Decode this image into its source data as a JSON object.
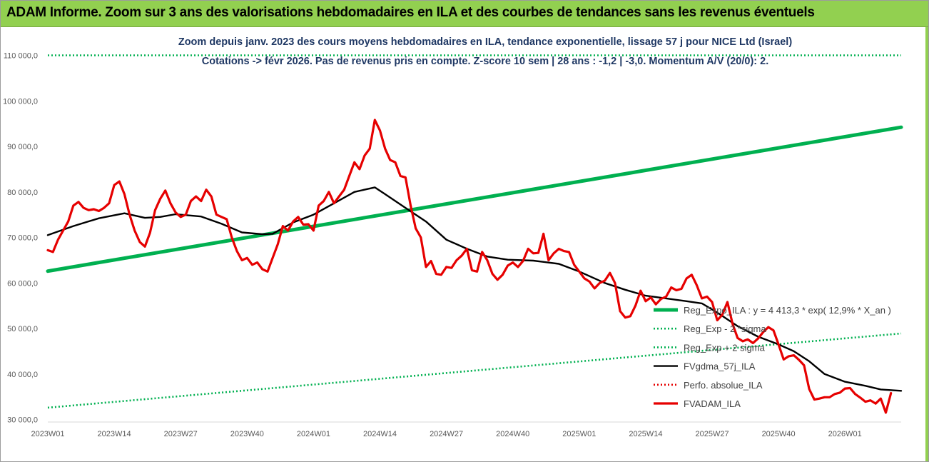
{
  "banner": {
    "title": "ADAM Informe. Zoom sur 3 ans des valorisations hebdomadaires en ILA et des courbes de tendances sans les revenus éventuels"
  },
  "colors": {
    "banner_bg": "#92d050",
    "subtitle": "#1f3864",
    "trend": "#00b050",
    "bands": "#00b050",
    "average": "#000000",
    "price": "#e60000",
    "perf": "#e60000"
  },
  "chart_data": {
    "type": "line",
    "title": "Zoom depuis janv. 2023 des cours moyens hebdomadaires en ILA, tendance exponentielle, lissage 57 j pour NICE Ltd (Israel)",
    "subtitle": "Cotations -> févr 2026.  Pas de revenus pris en compte. Z-score 10 sem | 28 ans : -1,2 | -3,0. Momentum A/V (20/0): 2.",
    "xlabel": "",
    "ylabel": "",
    "ylim": [
      30000,
      110000
    ],
    "y_ticks": [
      "30 000,0",
      "40 000,0",
      "50 000,0",
      "60 000,0",
      "70 000,0",
      "80 000,0",
      "90 000,0",
      "100 000,0",
      "110 000,0"
    ],
    "y_tick_values": [
      30000,
      40000,
      50000,
      60000,
      70000,
      80000,
      90000,
      100000,
      110000
    ],
    "x_ticks": [
      "2023W01",
      "2023W14",
      "2023W27",
      "2023W40",
      "2024W01",
      "2024W14",
      "2024W27",
      "2024W40",
      "2025W01",
      "2025W14",
      "2025W27",
      "2025W40",
      "2026W01"
    ],
    "x_tick_index": [
      0,
      13,
      26,
      39,
      52,
      65,
      78,
      91,
      104,
      117,
      130,
      143,
      156
    ],
    "n_weeks": 168,
    "grid": false,
    "legend_position": "right",
    "series": [
      {
        "name": "Reg_Expo_ILA : y = 4 413,3 * exp( 12,9% * X_an )",
        "style": "solid-thick",
        "color": "#00b050",
        "points": [
          [
            0,
            62600
          ],
          [
            167,
            94200
          ]
        ]
      },
      {
        "name": "Reg_Exp - 2 *sigma",
        "style": "dotted",
        "color": "#00b050",
        "points": [
          [
            0,
            32600
          ],
          [
            167,
            48900
          ]
        ]
      },
      {
        "name": "Reg_Exp + 2 sigma",
        "style": "dotted",
        "color": "#00b050",
        "points": [
          [
            0,
            110000
          ],
          [
            167,
            110000
          ]
        ]
      },
      {
        "name": "FVgdma_57j_ILA",
        "style": "solid",
        "color": "#000000",
        "points": [
          [
            0,
            70500
          ],
          [
            5,
            72500
          ],
          [
            10,
            74200
          ],
          [
            15,
            75300
          ],
          [
            19,
            74300
          ],
          [
            22,
            74500
          ],
          [
            25,
            75100
          ],
          [
            30,
            74600
          ],
          [
            34,
            73000
          ],
          [
            38,
            71100
          ],
          [
            42,
            70700
          ],
          [
            44,
            70800
          ],
          [
            48,
            73300
          ],
          [
            52,
            75000
          ],
          [
            56,
            77500
          ],
          [
            60,
            80000
          ],
          [
            64,
            81000
          ],
          [
            66,
            79500
          ],
          [
            70,
            76500
          ],
          [
            74,
            73500
          ],
          [
            78,
            69500
          ],
          [
            82,
            67500
          ],
          [
            86,
            65800
          ],
          [
            90,
            65100
          ],
          [
            95,
            64900
          ],
          [
            100,
            64200
          ],
          [
            104,
            62500
          ],
          [
            109,
            60000
          ],
          [
            113,
            58500
          ],
          [
            117,
            57200
          ],
          [
            121,
            56600
          ],
          [
            125,
            56000
          ],
          [
            128,
            55500
          ],
          [
            131,
            53500
          ],
          [
            135,
            50500
          ],
          [
            139,
            48200
          ],
          [
            143,
            46500
          ],
          [
            146,
            45000
          ],
          [
            149,
            42800
          ],
          [
            152,
            40000
          ],
          [
            156,
            38300
          ],
          [
            160,
            37400
          ],
          [
            163,
            36600
          ],
          [
            167,
            36300
          ]
        ]
      },
      {
        "name": "Perfo. absolue_ILA",
        "style": "dotted",
        "color": "#e60000",
        "points": []
      },
      {
        "name": "FVADAM_ILA",
        "style": "solid-thick",
        "color": "#e60000",
        "points": [
          [
            0,
            67200
          ],
          [
            1,
            66800
          ],
          [
            2,
            69500
          ],
          [
            3,
            71500
          ],
          [
            4,
            73500
          ],
          [
            5,
            77000
          ],
          [
            6,
            77800
          ],
          [
            7,
            76500
          ],
          [
            8,
            76000
          ],
          [
            9,
            76200
          ],
          [
            10,
            75800
          ],
          [
            11,
            76500
          ],
          [
            12,
            77500
          ],
          [
            13,
            81500
          ],
          [
            14,
            82300
          ],
          [
            15,
            79500
          ],
          [
            16,
            75000
          ],
          [
            17,
            71500
          ],
          [
            18,
            69000
          ],
          [
            19,
            68000
          ],
          [
            20,
            71000
          ],
          [
            21,
            76000
          ],
          [
            22,
            78500
          ],
          [
            23,
            80300
          ],
          [
            24,
            77500
          ],
          [
            25,
            75500
          ],
          [
            26,
            74500
          ],
          [
            27,
            75000
          ],
          [
            28,
            78000
          ],
          [
            29,
            79000
          ],
          [
            30,
            78000
          ],
          [
            31,
            80500
          ],
          [
            32,
            79000
          ],
          [
            33,
            75000
          ],
          [
            34,
            74500
          ],
          [
            35,
            74000
          ],
          [
            36,
            70000
          ],
          [
            37,
            67000
          ],
          [
            38,
            65000
          ],
          [
            39,
            65500
          ],
          [
            40,
            64000
          ],
          [
            41,
            64500
          ],
          [
            42,
            63000
          ],
          [
            43,
            62500
          ],
          [
            44,
            65500
          ],
          [
            45,
            68500
          ],
          [
            46,
            72500
          ],
          [
            47,
            71500
          ],
          [
            48,
            73500
          ],
          [
            49,
            74500
          ],
          [
            50,
            72800
          ],
          [
            51,
            72900
          ],
          [
            52,
            71500
          ],
          [
            53,
            77000
          ],
          [
            54,
            78000
          ],
          [
            55,
            80000
          ],
          [
            56,
            77500
          ],
          [
            57,
            79000
          ],
          [
            58,
            80500
          ],
          [
            59,
            83500
          ],
          [
            60,
            86500
          ],
          [
            61,
            85000
          ],
          [
            62,
            88000
          ],
          [
            63,
            89500
          ],
          [
            64,
            95800
          ],
          [
            65,
            93500
          ],
          [
            66,
            89500
          ],
          [
            67,
            87000
          ],
          [
            68,
            86500
          ],
          [
            69,
            83500
          ],
          [
            70,
            83200
          ],
          [
            71,
            77000
          ],
          [
            72,
            72000
          ],
          [
            73,
            70000
          ],
          [
            74,
            63500
          ],
          [
            75,
            64800
          ],
          [
            76,
            62000
          ],
          [
            77,
            61800
          ],
          [
            78,
            63500
          ],
          [
            79,
            63300
          ],
          [
            80,
            65000
          ],
          [
            81,
            66000
          ],
          [
            82,
            67500
          ],
          [
            83,
            62800
          ],
          [
            84,
            62500
          ],
          [
            85,
            66800
          ],
          [
            86,
            65000
          ],
          [
            87,
            62000
          ],
          [
            88,
            60700
          ],
          [
            89,
            61800
          ],
          [
            90,
            63800
          ],
          [
            91,
            64500
          ],
          [
            92,
            63500
          ],
          [
            93,
            64800
          ],
          [
            94,
            67500
          ],
          [
            95,
            66500
          ],
          [
            96,
            66600
          ],
          [
            97,
            70800
          ],
          [
            98,
            65000
          ],
          [
            99,
            66500
          ],
          [
            100,
            67500
          ],
          [
            101,
            67000
          ],
          [
            102,
            66800
          ],
          [
            103,
            64000
          ],
          [
            104,
            62500
          ],
          [
            105,
            61000
          ],
          [
            106,
            60300
          ],
          [
            107,
            58800
          ],
          [
            108,
            60000
          ],
          [
            109,
            60500
          ],
          [
            110,
            62200
          ],
          [
            111,
            60000
          ],
          [
            112,
            53800
          ],
          [
            113,
            52400
          ],
          [
            114,
            52700
          ],
          [
            115,
            55000
          ],
          [
            116,
            58300
          ],
          [
            117,
            56000
          ],
          [
            118,
            56800
          ],
          [
            119,
            55300
          ],
          [
            120,
            56500
          ],
          [
            121,
            57000
          ],
          [
            122,
            59000
          ],
          [
            123,
            58400
          ],
          [
            124,
            58700
          ],
          [
            125,
            61000
          ],
          [
            126,
            61800
          ],
          [
            127,
            59500
          ],
          [
            128,
            56600
          ],
          [
            129,
            57000
          ],
          [
            130,
            55800
          ],
          [
            131,
            51800
          ],
          [
            132,
            53000
          ],
          [
            133,
            55800
          ],
          [
            134,
            51000
          ],
          [
            135,
            47900
          ],
          [
            136,
            47200
          ],
          [
            137,
            47600
          ],
          [
            138,
            46800
          ],
          [
            139,
            47800
          ],
          [
            140,
            49200
          ],
          [
            141,
            50300
          ],
          [
            142,
            49600
          ],
          [
            143,
            46500
          ],
          [
            144,
            43200
          ],
          [
            145,
            43900
          ],
          [
            146,
            44100
          ],
          [
            147,
            43100
          ],
          [
            148,
            41900
          ],
          [
            149,
            36700
          ],
          [
            150,
            34400
          ],
          [
            151,
            34600
          ],
          [
            152,
            34900
          ],
          [
            153,
            34900
          ],
          [
            154,
            35600
          ],
          [
            155,
            35900
          ],
          [
            156,
            36800
          ],
          [
            157,
            36900
          ],
          [
            158,
            35600
          ],
          [
            159,
            34800
          ],
          [
            160,
            33900
          ],
          [
            161,
            34200
          ],
          [
            162,
            33500
          ],
          [
            163,
            34600
          ],
          [
            164,
            31500
          ],
          [
            165,
            35800
          ]
        ]
      }
    ]
  }
}
